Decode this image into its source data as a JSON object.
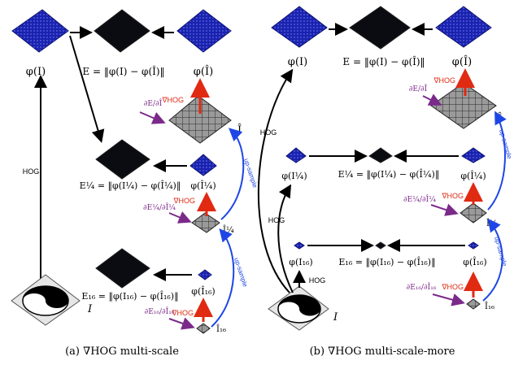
{
  "colors": {
    "feature": "#1a1ea8",
    "feature_dark": "#0a0a10",
    "grid_gray": "#8c8c8c",
    "arrow_black": "#000000",
    "arrow_red": "#e02a12",
    "arrow_blue": "#1e46e6",
    "arrow_purple": "#7b2a8a",
    "label_red": "#e02a12",
    "label_blue": "#1e46e6",
    "label_purple": "#7b2a8a"
  },
  "panel_a": {
    "caption": "(a)  ∇HOG multi-scale",
    "hog_label": "HOG",
    "phi_I": "φ(I)",
    "phi_Ihat": "φ(Î)",
    "E": "E = ‖φ(I) − φ(Î)‖",
    "dE": "∂E/∂Î",
    "Ihat": "Î",
    "I": "I",
    "nabla_hog": "∇HOG",
    "upsample": "up-sample",
    "phi_Ihat_4": "φ(Î¼)",
    "E_4": "E¼ = ‖φ(I¼) − φ(Î¼)‖",
    "dE_4": "∂E¼/∂Î¼",
    "Ihat_4": "Î¼",
    "phi_Ihat_16": "φ(Î₁₆)",
    "E_16": "E₁₆ = ‖φ(I₁₆) − φ(Î₁₆)‖",
    "dE_16": "∂E₁₆/∂Î₁₆",
    "Ihat_16": "Î₁₆"
  },
  "panel_b": {
    "caption": "(b)  ∇HOG multi-scale-more",
    "hog_label": "HOG",
    "phi_I": "φ(I)",
    "phi_Ihat": "φ(Î)",
    "E": "E = ‖φ(I) − φ(Î)‖",
    "dE": "∂E/∂Î",
    "Ihat": "Î",
    "I": "I",
    "nabla_hog": "∇HOG",
    "upsample": "up-sample",
    "phi_I_4": "φ(I¼)",
    "phi_Ihat_4": "φ(Î¼)",
    "E_4": "E¼ = ‖φ(I¼) − φ(Î¼)‖",
    "dE_4": "∂E¼/∂Î¼",
    "Ihat_4": "Î¼",
    "phi_I_16": "φ(I₁₆)",
    "phi_Ihat_16": "φ(Î₁₆)",
    "E_16": "E₁₆ = ‖φ(I₁₆) − φ(Î₁₆)‖",
    "dE_16": "∂E₁₆/∂Î₁₆",
    "Ihat_16": "Î₁₆"
  }
}
